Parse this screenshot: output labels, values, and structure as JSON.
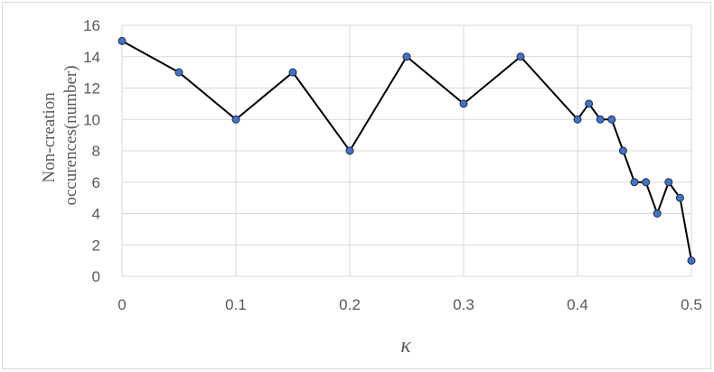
{
  "chart_data": {
    "type": "scatter",
    "xlabel": "κ",
    "ylabel_lines": [
      "Non-creation",
      "occurences(number)"
    ],
    "xlim": [
      0,
      0.5
    ],
    "ylim": [
      0,
      16
    ],
    "x_ticks": [
      0,
      0.1,
      0.2,
      0.3,
      0.4,
      0.5
    ],
    "x_tick_labels": [
      "0",
      "0.1",
      "0.2",
      "0.3",
      "0.4",
      "0.5"
    ],
    "y_ticks": [
      0,
      2,
      4,
      6,
      8,
      10,
      12,
      14,
      16
    ],
    "y_tick_labels": [
      "0",
      "2",
      "4",
      "6",
      "8",
      "10",
      "12",
      "14",
      "16"
    ],
    "grid": true,
    "legend": "none",
    "colors": {
      "line": "#000000",
      "marker_fill": "#4472c4",
      "marker_edge": "#1f2a44",
      "grid": "#d9d9d9",
      "text": "#595959"
    },
    "series": [
      {
        "x": [
          0,
          0.05,
          0.1,
          0.15,
          0.2,
          0.25,
          0.3,
          0.35,
          0.4,
          0.41,
          0.42,
          0.43,
          0.44,
          0.45,
          0.46,
          0.47,
          0.48,
          0.49,
          0.5
        ],
        "y": [
          15,
          13,
          10,
          13,
          8,
          14,
          11,
          14,
          10,
          11,
          10,
          10,
          8,
          6,
          6,
          4,
          6,
          5,
          1
        ]
      }
    ]
  }
}
